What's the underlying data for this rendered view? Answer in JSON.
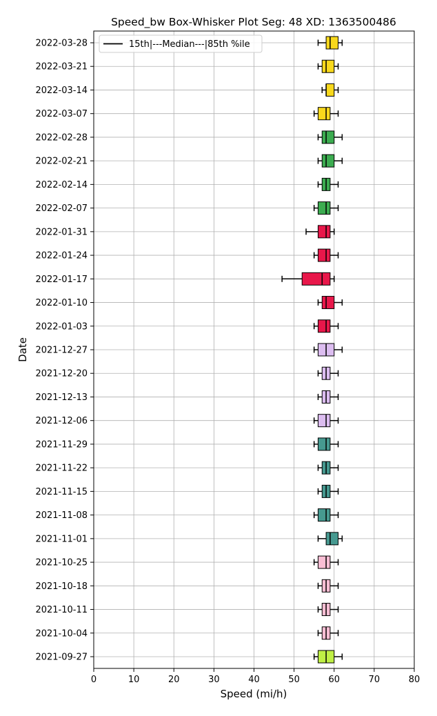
{
  "chart_data": {
    "type": "box",
    "title": "Speed_bw Box-Whisker Plot Seg: 48 XD: 1363500486",
    "xlabel": "Speed (mi/h)",
    "ylabel": "Date",
    "xlim": [
      0,
      80
    ],
    "xticks": [
      0,
      10,
      20,
      30,
      40,
      50,
      60,
      70,
      80
    ],
    "grid": true,
    "legend": {
      "label": "15th|---Median---|85th %ile",
      "placement": "top-left"
    },
    "categories": [
      "2022-03-28",
      "2022-03-21",
      "2022-03-14",
      "2022-03-07",
      "2022-02-28",
      "2022-02-21",
      "2022-02-14",
      "2022-02-07",
      "2022-01-31",
      "2022-01-24",
      "2022-01-17",
      "2022-01-10",
      "2022-01-03",
      "2021-12-27",
      "2021-12-20",
      "2021-12-13",
      "2021-12-06",
      "2021-11-29",
      "2021-11-22",
      "2021-11-15",
      "2021-11-08",
      "2021-11-01",
      "2021-10-25",
      "2021-10-18",
      "2021-10-11",
      "2021-10-04",
      "2021-09-27"
    ],
    "boxes": [
      {
        "whislo": 56,
        "q1": 58,
        "med": 59,
        "q3": 61,
        "whishi": 62,
        "color": "#f8d81c"
      },
      {
        "whislo": 56,
        "q1": 57,
        "med": 58,
        "q3": 60,
        "whishi": 61,
        "color": "#f8d81c"
      },
      {
        "whislo": 57,
        "q1": 58,
        "med": 58,
        "q3": 60,
        "whishi": 61,
        "color": "#f8d81c"
      },
      {
        "whislo": 55,
        "q1": 56,
        "med": 58,
        "q3": 59,
        "whishi": 61,
        "color": "#f8d81c"
      },
      {
        "whislo": 56,
        "q1": 57,
        "med": 58,
        "q3": 60,
        "whishi": 62,
        "color": "#3cac50"
      },
      {
        "whislo": 56,
        "q1": 57,
        "med": 58,
        "q3": 60,
        "whishi": 62,
        "color": "#3cac50"
      },
      {
        "whislo": 56,
        "q1": 57,
        "med": 58,
        "q3": 59,
        "whishi": 61,
        "color": "#3cac50"
      },
      {
        "whislo": 55,
        "q1": 56,
        "med": 58,
        "q3": 59,
        "whishi": 61,
        "color": "#3cac50"
      },
      {
        "whislo": 53,
        "q1": 56,
        "med": 58,
        "q3": 59,
        "whishi": 60,
        "color": "#e8174a"
      },
      {
        "whislo": 55,
        "q1": 56,
        "med": 58,
        "q3": 59,
        "whishi": 61,
        "color": "#e8174a"
      },
      {
        "whislo": 47,
        "q1": 52,
        "med": 57,
        "q3": 59,
        "whishi": 60,
        "color": "#e8174a"
      },
      {
        "whislo": 56,
        "q1": 57,
        "med": 58,
        "q3": 60,
        "whishi": 62,
        "color": "#e8174a"
      },
      {
        "whislo": 55,
        "q1": 56,
        "med": 58,
        "q3": 59,
        "whishi": 61,
        "color": "#e8174a"
      },
      {
        "whislo": 55,
        "q1": 56,
        "med": 58,
        "q3": 60,
        "whishi": 62,
        "color": "#dcbdf0"
      },
      {
        "whislo": 56,
        "q1": 57,
        "med": 58,
        "q3": 59,
        "whishi": 61,
        "color": "#dcbdf0"
      },
      {
        "whislo": 56,
        "q1": 57,
        "med": 58,
        "q3": 59,
        "whishi": 61,
        "color": "#dcbdf0"
      },
      {
        "whislo": 55,
        "q1": 56,
        "med": 58,
        "q3": 59,
        "whishi": 61,
        "color": "#dcbdf0"
      },
      {
        "whislo": 55,
        "q1": 56,
        "med": 58,
        "q3": 59,
        "whishi": 61,
        "color": "#469990"
      },
      {
        "whislo": 56,
        "q1": 57,
        "med": 58,
        "q3": 59,
        "whishi": 61,
        "color": "#469990"
      },
      {
        "whislo": 56,
        "q1": 57,
        "med": 58,
        "q3": 59,
        "whishi": 61,
        "color": "#469990"
      },
      {
        "whislo": 55,
        "q1": 56,
        "med": 58,
        "q3": 59,
        "whishi": 61,
        "color": "#469990"
      },
      {
        "whislo": 56,
        "q1": 58,
        "med": 59,
        "q3": 61,
        "whishi": 62,
        "color": "#469990"
      },
      {
        "whislo": 55,
        "q1": 56,
        "med": 58,
        "q3": 59,
        "whishi": 61,
        "color": "#fabed4"
      },
      {
        "whislo": 56,
        "q1": 57,
        "med": 58,
        "q3": 59,
        "whishi": 61,
        "color": "#fabed4"
      },
      {
        "whislo": 56,
        "q1": 57,
        "med": 58,
        "q3": 59,
        "whishi": 61,
        "color": "#fabed4"
      },
      {
        "whislo": 56,
        "q1": 57,
        "med": 58,
        "q3": 59,
        "whishi": 61,
        "color": "#fabed4"
      },
      {
        "whislo": 55,
        "q1": 56,
        "med": 58,
        "q3": 60,
        "whishi": 62,
        "color": "#bfef45"
      }
    ]
  }
}
